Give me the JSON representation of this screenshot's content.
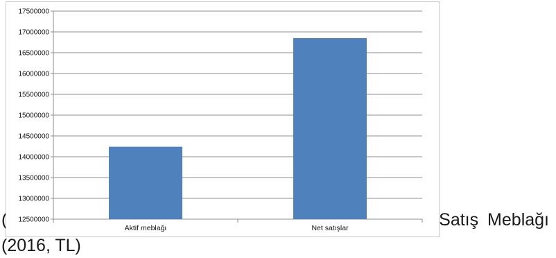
{
  "caption": {
    "line1_left": "(",
    "line1_right": "Satış Meblağı",
    "line2": "(2016, TL)"
  },
  "chart_data": {
    "type": "bar",
    "categories": [
      "Aktif meblağı",
      "Net satışlar"
    ],
    "values": [
      14240000,
      16850000
    ],
    "ylim": [
      12500000,
      17500000
    ],
    "yticks": [
      12500000,
      13000000,
      13500000,
      14000000,
      14500000,
      15000000,
      15500000,
      16000000,
      16500000,
      17000000,
      17500000
    ],
    "ytick_labels": [
      "12500000",
      "13000000",
      "13500000",
      "14000000",
      "14500000",
      "15000000",
      "15500000",
      "16000000",
      "16500000",
      "17000000",
      "17500000"
    ],
    "grid": true,
    "bar_color": "#4f81bd",
    "grid_color": "#8c8c8c"
  }
}
